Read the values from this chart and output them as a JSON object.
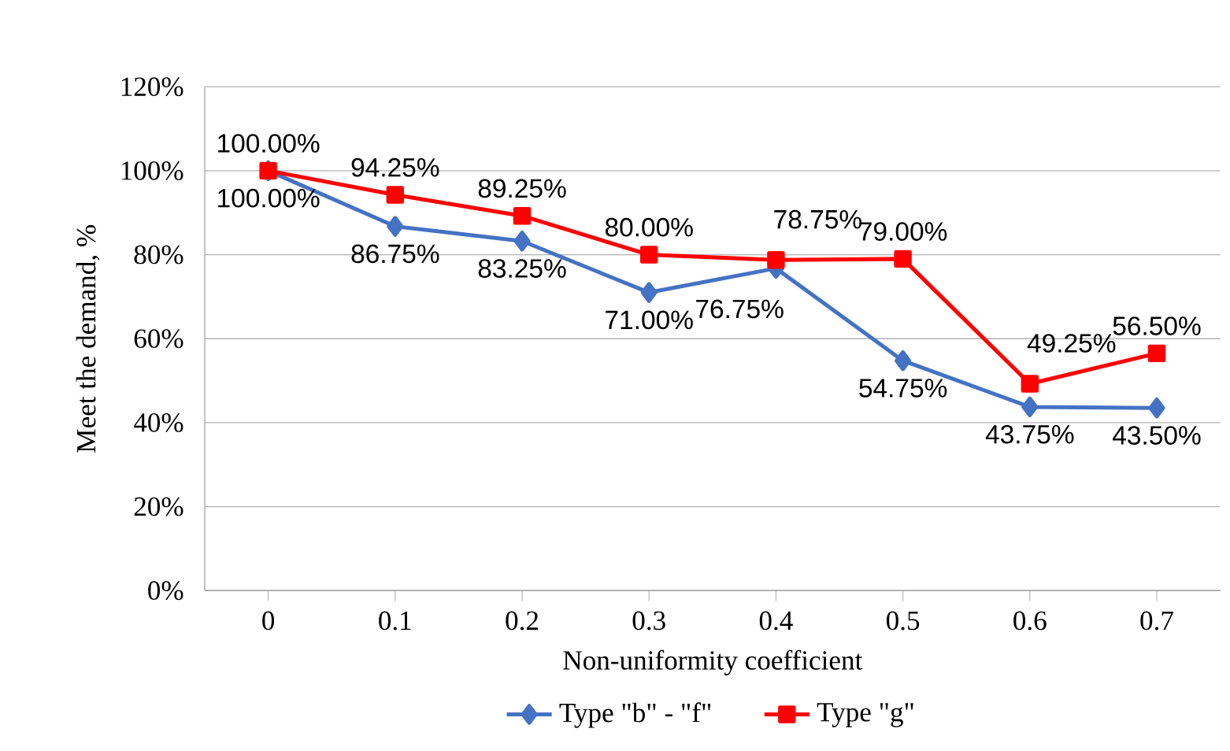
{
  "chart_data": {
    "type": "line",
    "xlabel": "Non-uniformity coefficient",
    "ylabel": "Meet the demand, %",
    "categories": [
      "0",
      "0.1",
      "0.2",
      "0.3",
      "0.4",
      "0.5",
      "0.6",
      "0.7"
    ],
    "ylim": [
      0,
      120
    ],
    "yticks": [
      {
        "value": 0,
        "label": "0%"
      },
      {
        "value": 20,
        "label": "20%"
      },
      {
        "value": 40,
        "label": "40%"
      },
      {
        "value": 60,
        "label": "60%"
      },
      {
        "value": 80,
        "label": "80%"
      },
      {
        "value": 100,
        "label": "100%"
      },
      {
        "value": 120,
        "label": "120%"
      }
    ],
    "grid": "y",
    "legend": "bottom",
    "series": [
      {
        "name": "Type \"b\" - \"f\"",
        "color": "#4472c4",
        "marker": "diamond",
        "values": [
          100,
          86.75,
          83.25,
          71,
          76.75,
          54.75,
          43.75,
          43.5
        ],
        "value_labels": [
          "100.00%",
          "86.75%",
          "83.25%",
          "71.00%",
          "76.75%",
          "54.75%",
          "43.75%",
          "43.50%"
        ]
      },
      {
        "name": "Type \"g\"",
        "color": "#ff0000",
        "marker": "square",
        "values": [
          100,
          94.25,
          89.25,
          80,
          78.75,
          79,
          49.25,
          56.5
        ],
        "value_labels": [
          "100.00%",
          "94.25%",
          "89.25%",
          "80.00%",
          "78.75%",
          "79.00%",
          "49.25%",
          "56.50%"
        ]
      }
    ]
  }
}
